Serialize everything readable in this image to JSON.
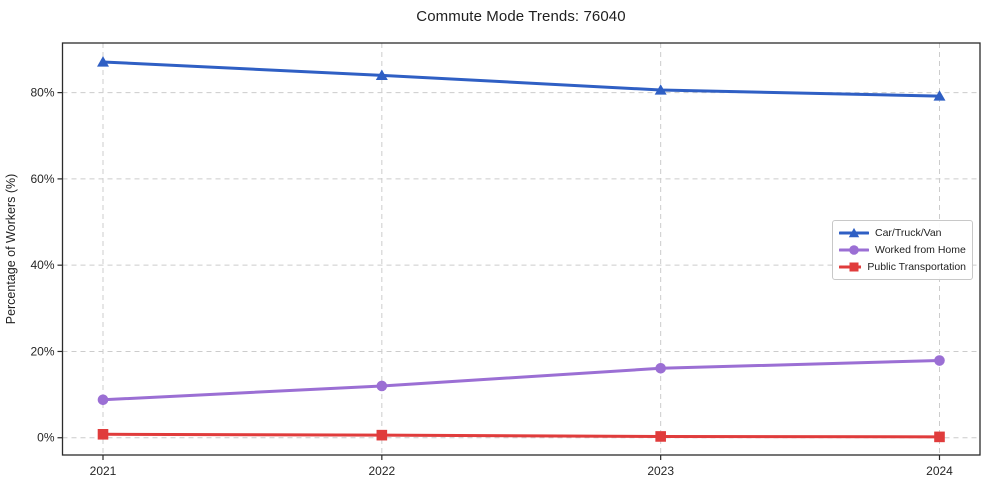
{
  "chart_data": {
    "type": "line",
    "title": "Commute Mode Trends: 76040",
    "xlabel": "",
    "ylabel": "Percentage of Workers (%)",
    "categories": [
      "2021",
      "2022",
      "2023",
      "2024"
    ],
    "series": [
      {
        "name": "Car/Truck/Van",
        "color": "#2f5fc4",
        "marker": "triangle",
        "values": [
          87.1,
          84.0,
          80.6,
          79.2
        ]
      },
      {
        "name": "Worked from Home",
        "color": "#9b6fd4",
        "marker": "circle",
        "values": [
          8.8,
          12.0,
          16.1,
          17.9
        ]
      },
      {
        "name": "Public Transportation",
        "color": "#e03c3c",
        "marker": "square",
        "values": [
          0.8,
          0.6,
          0.3,
          0.2
        ]
      }
    ],
    "ylim": [
      -4,
      91.5
    ],
    "yticks": [
      0,
      20,
      40,
      60,
      80
    ],
    "ytick_labels": [
      "0%",
      "20%",
      "40%",
      "60%",
      "80%"
    ],
    "grid": true,
    "grid_style": "dashed",
    "legend_position": "center-right",
    "colors": {
      "background": "#ffffff",
      "grid": "#cccccc",
      "spine": "#2b2b2b",
      "text": "#1f1f1f"
    }
  }
}
